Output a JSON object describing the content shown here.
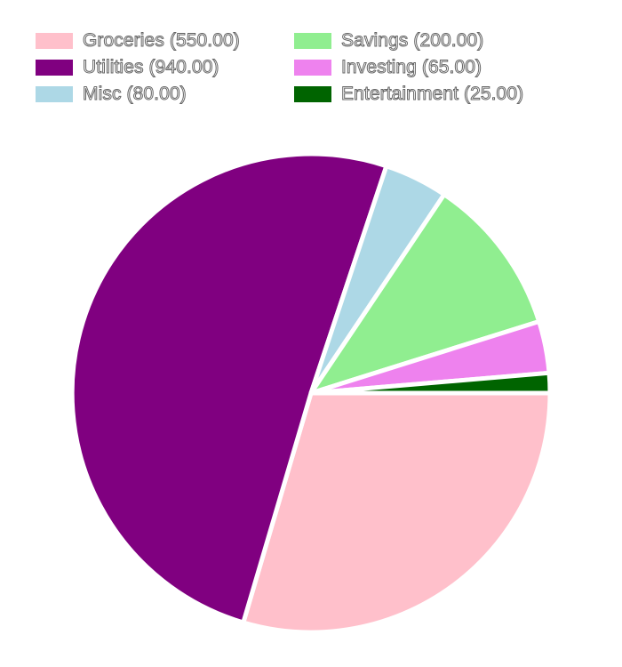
{
  "chart_data": {
    "type": "pie",
    "title": "",
    "slices": [
      {
        "label": "Groceries (550.00)",
        "value": 550.0,
        "color": "#ffc0cb"
      },
      {
        "label": "Utilities (940.00)",
        "value": 940.0,
        "color": "#800080"
      },
      {
        "label": "Misc (80.00)",
        "value": 80.0,
        "color": "#add8e6"
      },
      {
        "label": "Savings (200.00)",
        "value": 200.0,
        "color": "#90ee90"
      },
      {
        "label": "Investing (65.00)",
        "value": 65.0,
        "color": "#ee82ee"
      },
      {
        "label": "Entertainment (25.00)",
        "value": 25.0,
        "color": "#006400"
      }
    ],
    "legend_position": "top",
    "start_angle": "3 o'clock",
    "direction": "clockwise"
  }
}
